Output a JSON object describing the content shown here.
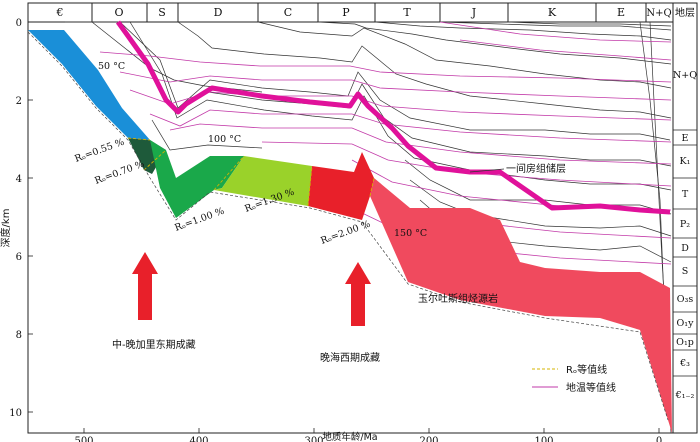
{
  "periods": [
    "€",
    "O",
    "S",
    "D",
    "C",
    "P",
    "T",
    "J",
    "K",
    "E",
    "N+Q"
  ],
  "strat_header": "地层",
  "strat_column": [
    "N+Q",
    "E",
    "K₁",
    "T",
    "P₂",
    "D",
    "S",
    "O₃s",
    "O₁y",
    "O₁p",
    "€₃",
    "€₁₋₂"
  ],
  "axes": {
    "xlabel": "地质年龄/Ma",
    "ylabel": "深度/km",
    "xticks": [
      "500",
      "400",
      "300",
      "200",
      "100",
      "0"
    ],
    "yticks": [
      "0",
      "2",
      "4",
      "6",
      "8",
      "10"
    ]
  },
  "isotherms": [
    "50 °C",
    "100 °C",
    "150 °C"
  ],
  "ro_labels": [
    "Rₒ=0.55 %",
    "Rₒ=0.70 %",
    "Rₒ=1.00 %",
    "Rₒ=1.30 %",
    "Rₒ=2.00 %"
  ],
  "annotations": {
    "reservoir": "一间房组储层",
    "source_rock": "玉尔吐斯组烃源岩",
    "stage1": "中-晚加里东期成藏",
    "stage2": "晚海西期成藏"
  },
  "legend": {
    "ro_line": "Rₒ等值线",
    "temp_line": "地温等值线"
  },
  "colors": {
    "ro055": "#1a8fd8",
    "ro070": "#1e5a3a",
    "ro100": "#1aa84a",
    "ro130": "#9ad22a",
    "ro200": "#e8202a",
    "ro_high": "#f04a5e",
    "reservoir": "#e0119a",
    "isotherm": "#c23aa8",
    "arrow": "#e8202a"
  }
}
